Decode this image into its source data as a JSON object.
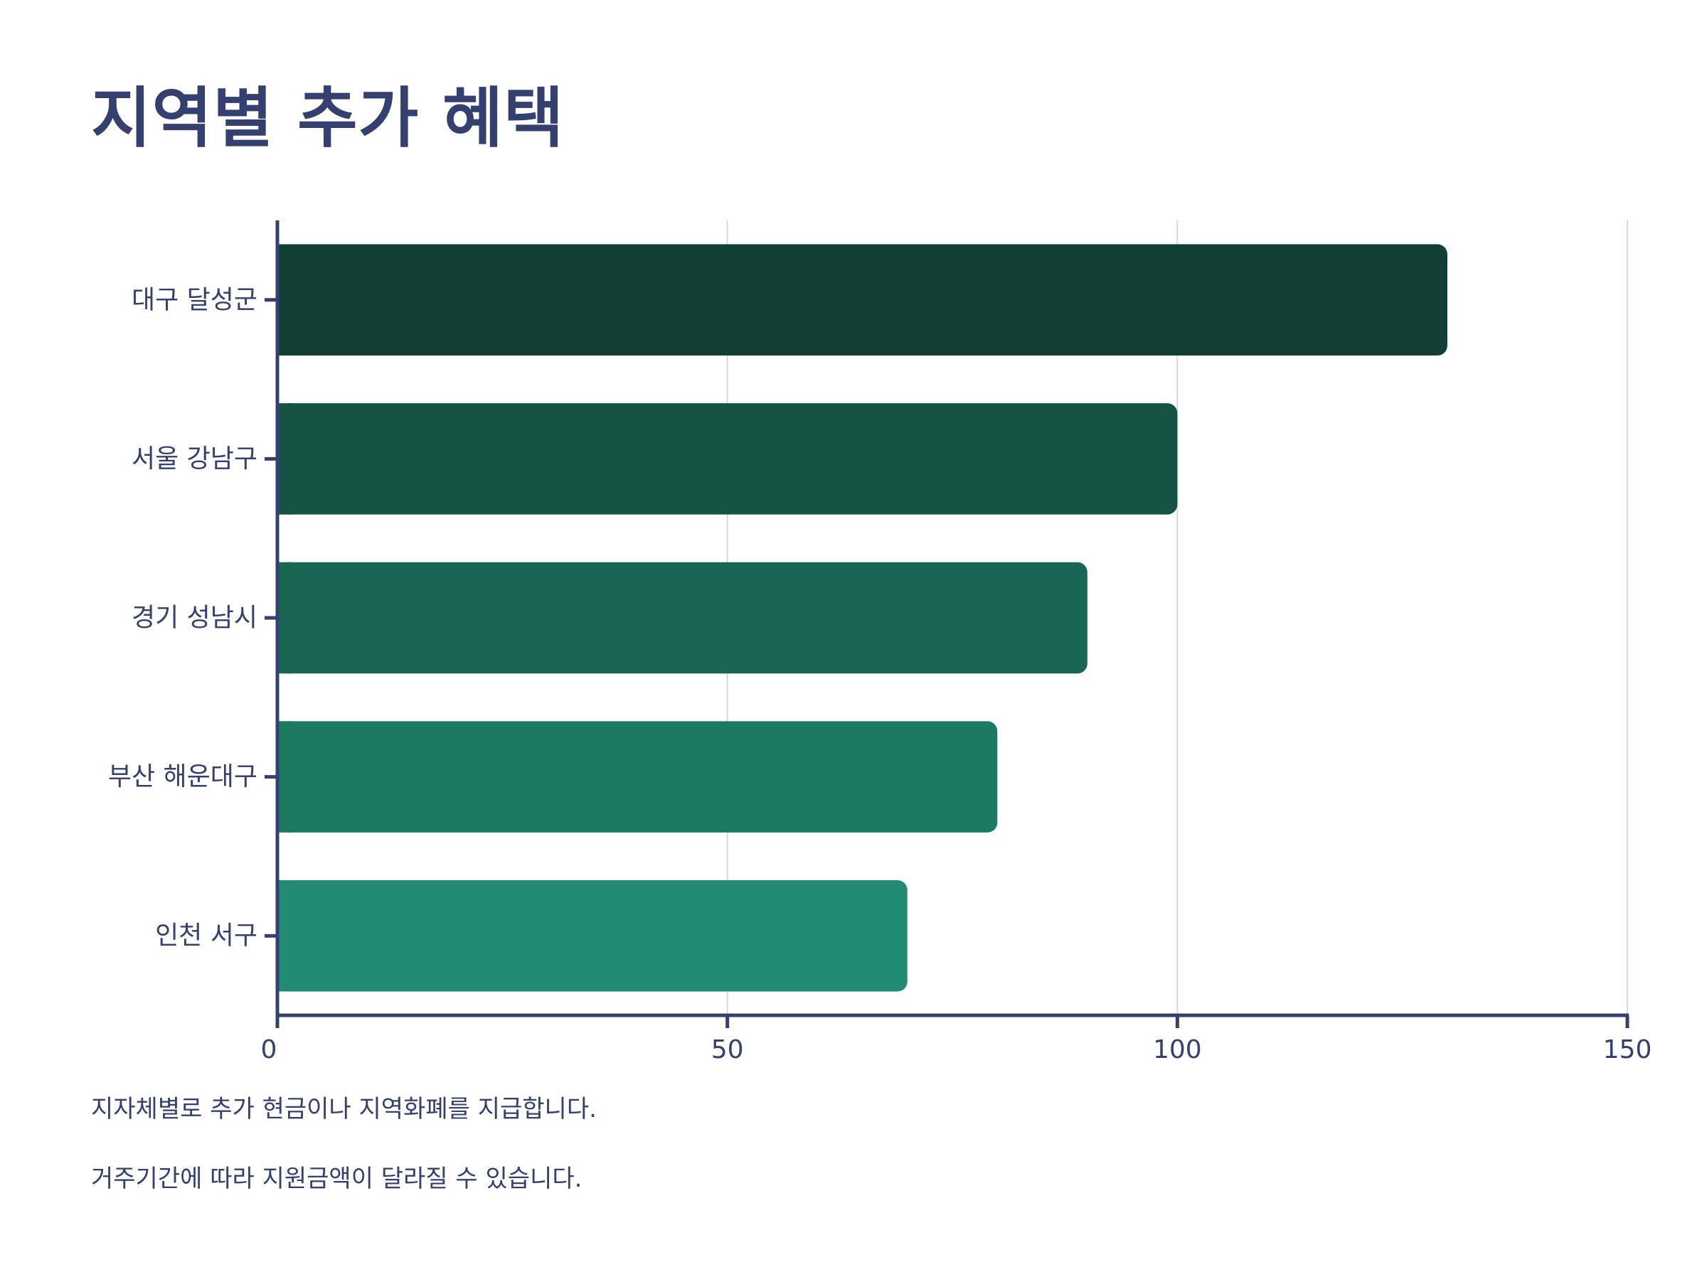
{
  "chart_data": {
    "type": "bar",
    "orientation": "horizontal",
    "title": "지역별 추가 혜택",
    "xlabel": "",
    "ylabel": "",
    "categories": [
      "대구 달성군",
      "서울 강남구",
      "경기 성남시",
      "부산 해운대구",
      "인천 서구"
    ],
    "values": [
      130,
      100,
      90,
      80,
      70
    ],
    "colors": [
      "#113e35",
      "#165345",
      "#196654",
      "#1c7962",
      "#218b73"
    ],
    "xlim": [
      0,
      150
    ],
    "xticks": [
      0,
      50,
      100,
      150
    ],
    "grid": true,
    "legend": "none",
    "axis_color": "#34406f",
    "grid_color": "#d5d7dd"
  },
  "notes": [
    "지자체별로 추가 현금이나 지역화폐를 지급합니다.",
    "거주기간에 따라 지원금액이 달라질 수 있습니다."
  ]
}
